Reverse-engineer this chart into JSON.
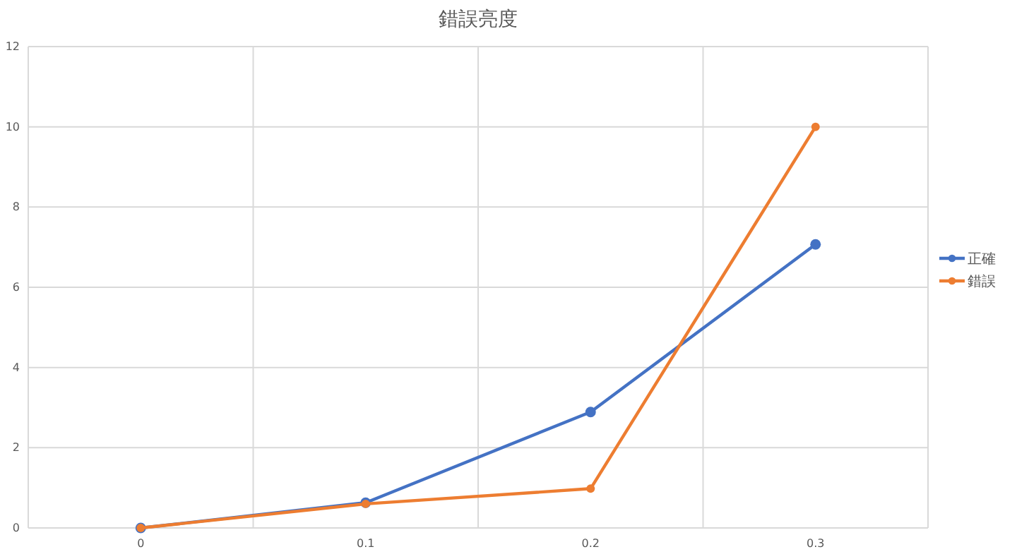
{
  "chart_data": {
    "type": "line",
    "title": "錯誤亮度",
    "categories": [
      "0",
      "0.1",
      "0.2",
      "0.3"
    ],
    "series": [
      {
        "name": "正確",
        "color": "#4472c4",
        "values": [
          0,
          0.63,
          2.89,
          7.07
        ]
      },
      {
        "name": "錯誤",
        "color": "#ed7d31",
        "values": [
          0,
          0.6,
          0.98,
          10
        ]
      }
    ],
    "ylim": [
      0,
      12
    ],
    "yticks": [
      0,
      2,
      4,
      6,
      8,
      10,
      12
    ],
    "grid": true,
    "legend": "right",
    "marker": "circle",
    "line_style": "solid"
  }
}
